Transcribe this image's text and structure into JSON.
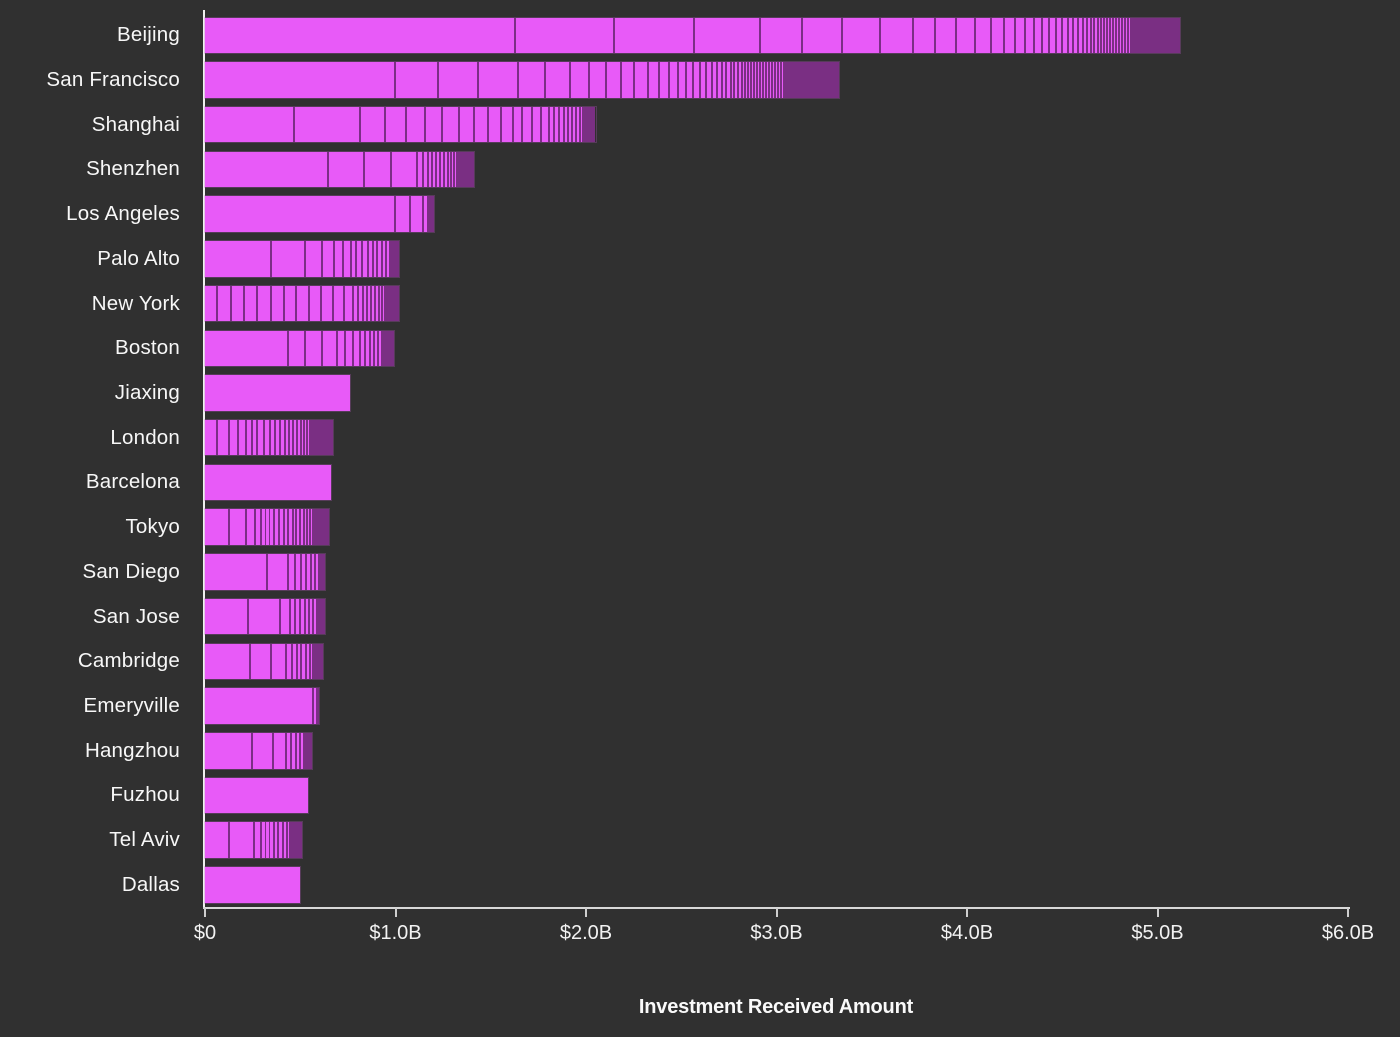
{
  "colors": {
    "background": "#303030",
    "bar_fill": "#e85af8",
    "segment_divider": "#7c2e86",
    "dense_cap": "#7a2f83",
    "axis_line": "#e0e0e0",
    "text": "#f7f7f7"
  },
  "chart_data": {
    "type": "bar",
    "orientation": "horizontal",
    "stacked": true,
    "title": "",
    "xlabel": "Investment Received Amount",
    "ylabel": "",
    "x_unit": "USD billions",
    "xlim": [
      0,
      6.0
    ],
    "grid": "off",
    "legend": "none",
    "x_ticks": [
      {
        "value": 0,
        "label": "$0"
      },
      {
        "value": 1,
        "label": "$1.0B"
      },
      {
        "value": 2,
        "label": "$2.0B"
      },
      {
        "value": 3,
        "label": "$3.0B"
      },
      {
        "value": 4,
        "label": "$4.0B"
      },
      {
        "value": 5,
        "label": "$5.0B"
      },
      {
        "value": 6,
        "label": "$6.0B"
      }
    ],
    "categories": [
      "Beijing",
      "San Francisco",
      "Shanghai",
      "Shenzhen",
      "Los Angeles",
      "Palo Alto",
      "New York",
      "Boston",
      "Jiaxing",
      "London",
      "Barcelona",
      "Tokyo",
      "San Diego",
      "San Jose",
      "Cambridge",
      "Emeryville",
      "Hangzhou",
      "Fuzhou",
      "Tel Aviv",
      "Dallas"
    ],
    "bars": [
      {
        "city": "Beijing",
        "total_b": 5.12,
        "segments_b": [
          1.63,
          0.52,
          0.42,
          0.35,
          0.22,
          0.21,
          0.2,
          0.17,
          0.12,
          0.11,
          0.1,
          0.08,
          0.07
        ],
        "dense_tail_b": 0.92
      },
      {
        "city": "San Francisco",
        "total_b": 3.33,
        "segments_b": [
          1.0,
          0.23,
          0.21,
          0.21,
          0.14,
          0.13,
          0.1,
          0.09,
          0.08,
          0.07,
          0.07
        ],
        "dense_tail_b": 1.0
      },
      {
        "city": "Shanghai",
        "total_b": 2.05,
        "segments_b": [
          0.47,
          0.35,
          0.13,
          0.11,
          0.1,
          0.09,
          0.09,
          0.08,
          0.07,
          0.07,
          0.06,
          0.05,
          0.05,
          0.05,
          0.04,
          0.03
        ],
        "dense_tail_b": 0.21
      },
      {
        "city": "Shenzhen",
        "total_b": 1.41,
        "segments_b": [
          0.65,
          0.19,
          0.14,
          0.14
        ],
        "dense_tail_b": 0.29
      },
      {
        "city": "Los Angeles",
        "total_b": 1.2,
        "segments_b": [
          1.0,
          0.08,
          0.07
        ],
        "dense_tail_b": 0.05
      },
      {
        "city": "Palo Alto",
        "total_b": 1.02,
        "segments_b": [
          0.35,
          0.18,
          0.09,
          0.06,
          0.05,
          0.04,
          0.03,
          0.03,
          0.03
        ],
        "dense_tail_b": 0.16
      },
      {
        "city": "New York",
        "total_b": 1.02,
        "segments_b": [
          0.07,
          0.07,
          0.07,
          0.07,
          0.07,
          0.07,
          0.065,
          0.065,
          0.065,
          0.06,
          0.06,
          0.05
        ],
        "dense_tail_b": 0.235
      },
      {
        "city": "Boston",
        "total_b": 0.99,
        "segments_b": [
          0.44,
          0.09,
          0.09,
          0.08,
          0.04,
          0.04,
          0.04
        ],
        "dense_tail_b": 0.17
      },
      {
        "city": "Jiaxing",
        "total_b": 0.76,
        "segments_b": [
          0.76
        ],
        "dense_tail_b": 0
      },
      {
        "city": "London",
        "total_b": 0.67,
        "segments_b": [
          0.07,
          0.06,
          0.05,
          0.04,
          0.03,
          0.03
        ],
        "dense_tail_b": 0.39
      },
      {
        "city": "Barcelona",
        "total_b": 0.66,
        "segments_b": [
          0.66
        ],
        "dense_tail_b": 0
      },
      {
        "city": "Tokyo",
        "total_b": 0.65,
        "segments_b": [
          0.13,
          0.09,
          0.05,
          0.03,
          0.02,
          0.02
        ],
        "dense_tail_b": 0.31
      },
      {
        "city": "San Diego",
        "total_b": 0.63,
        "segments_b": [
          0.33,
          0.11,
          0.04,
          0.03
        ],
        "dense_tail_b": 0.12
      },
      {
        "city": "San Jose",
        "total_b": 0.63,
        "segments_b": [
          0.23,
          0.17,
          0.05,
          0.03
        ],
        "dense_tail_b": 0.15
      },
      {
        "city": "Cambridge",
        "total_b": 0.62,
        "segments_b": [
          0.24,
          0.11,
          0.08,
          0.03
        ],
        "dense_tail_b": 0.16
      },
      {
        "city": "Emeryville",
        "total_b": 0.6,
        "segments_b": [
          0.57,
          0.02
        ],
        "dense_tail_b": 0.01
      },
      {
        "city": "Hangzhou",
        "total_b": 0.56,
        "segments_b": [
          0.25,
          0.11,
          0.07
        ],
        "dense_tail_b": 0.13
      },
      {
        "city": "Fuzhou",
        "total_b": 0.54,
        "segments_b": [
          0.54
        ],
        "dense_tail_b": 0
      },
      {
        "city": "Tel Aviv",
        "total_b": 0.51,
        "segments_b": [
          0.13,
          0.13,
          0.04,
          0.02,
          0.02
        ],
        "dense_tail_b": 0.17
      },
      {
        "city": "Dallas",
        "total_b": 0.5,
        "segments_b": [
          0.5
        ],
        "dense_tail_b": 0
      }
    ]
  }
}
